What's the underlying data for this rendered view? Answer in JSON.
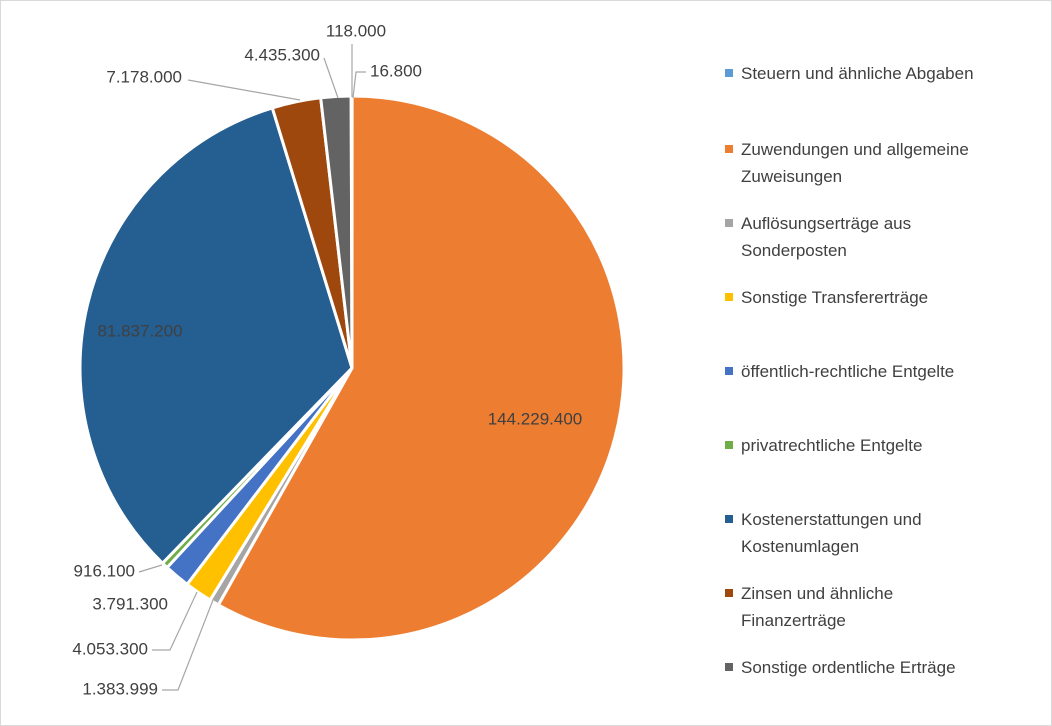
{
  "chart_data": {
    "type": "pie",
    "categories": [
      "Steuern und ähnliche Abgaben",
      "Zuwendungen und allgemeine Zuweisungen",
      "Auflösungserträge aus Sonderposten",
      "Sonstige Transfererträge",
      "öffentlich-rechtliche Entgelte",
      "privatrechtliche Entgelte",
      "Kostenerstattungen und Kostenumlagen",
      "Zinsen und ähnliche Finanzerträge",
      "Sonstige ordentliche Erträge",
      null
    ],
    "values": [
      16800,
      144229400,
      1383999,
      4053300,
      3791300,
      916100,
      81837200,
      7178000,
      4435300,
      118000
    ],
    "value_labels": [
      "16.800",
      "144.229.400",
      "1.383.999",
      "4.053.300",
      "3.791.300",
      "916.100",
      "81.837.200",
      "7.178.000",
      "4.435.300",
      "118.000"
    ],
    "colors": [
      "#5B9BD5",
      "#ED7D31",
      "#A5A5A5",
      "#FFC000",
      "#4472C4",
      "#70AD47",
      "#255E91",
      "#9E480E",
      "#636363",
      "#997300"
    ],
    "legend": "right"
  }
}
